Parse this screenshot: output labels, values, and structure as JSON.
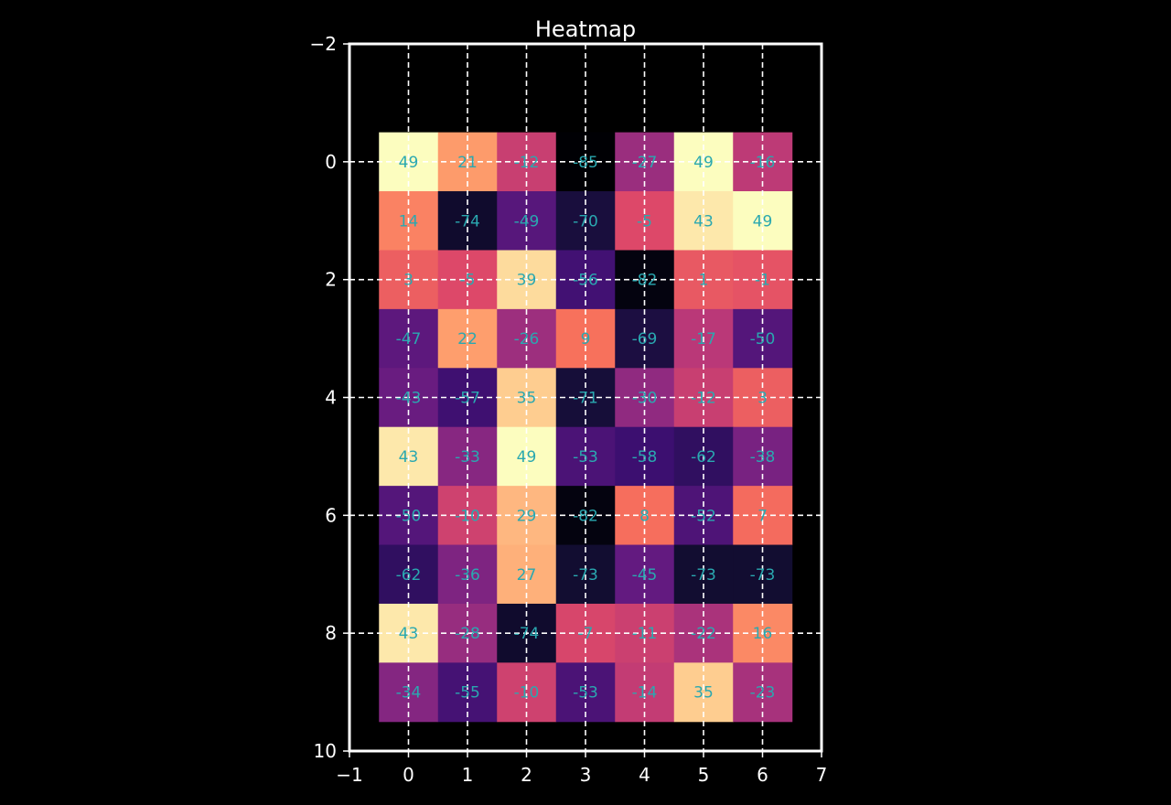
{
  "chart_data": {
    "type": "heatmap",
    "title": "Heatmap",
    "xlabel": "",
    "ylabel": "",
    "xlim": [
      -1,
      7
    ],
    "ylim": [
      10,
      -2
    ],
    "x_ticks": [
      "−1",
      "0",
      "1",
      "2",
      "3",
      "4",
      "5",
      "6",
      "7"
    ],
    "y_ticks": [
      "−2",
      "0",
      "2",
      "4",
      "6",
      "8",
      "10"
    ],
    "grid": true,
    "colormap": "magma",
    "value_range": [
      -85,
      49
    ],
    "annotation_color": "#2aa8b0",
    "values": [
      [
        49,
        21,
        -12,
        -85,
        -27,
        49,
        -16
      ],
      [
        14,
        -74,
        -49,
        -70,
        -5,
        43,
        49
      ],
      [
        3,
        -5,
        39,
        -56,
        -82,
        1,
        -1
      ],
      [
        -47,
        22,
        -26,
        9,
        -69,
        -17,
        -50
      ],
      [
        -43,
        -57,
        35,
        -71,
        -30,
        -12,
        3
      ],
      [
        43,
        -33,
        49,
        -53,
        -58,
        -62,
        -38
      ],
      [
        -50,
        -10,
        29,
        -82,
        8,
        -52,
        7
      ],
      [
        -62,
        -36,
        27,
        -73,
        -45,
        -73,
        -73
      ],
      [
        43,
        -28,
        -74,
        -7,
        -11,
        -22,
        16
      ],
      [
        -34,
        -55,
        -10,
        -53,
        -14,
        35,
        -23
      ]
    ]
  }
}
